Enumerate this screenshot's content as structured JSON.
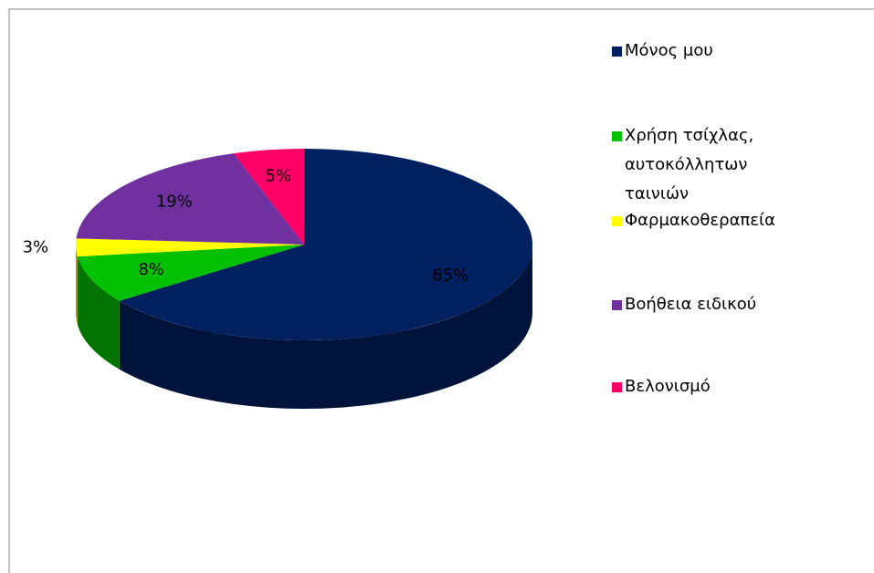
{
  "chart_data": {
    "type": "pie",
    "categories": [
      "Μόνος μου",
      "Χρήση τσίχλας, αυτοκόλλητων ταινιών",
      "Φαρμακοθεραπεία",
      "Βοήθεια ειδικού",
      "Βελονισμό"
    ],
    "values": [
      65,
      8,
      3,
      19,
      5
    ],
    "value_labels": [
      "65%",
      "8%",
      "3%",
      "19%",
      "5%"
    ],
    "colors": [
      "#002060",
      "#00c000",
      "#ffff00",
      "#7030a0",
      "#ff0066"
    ],
    "legend": "right"
  }
}
